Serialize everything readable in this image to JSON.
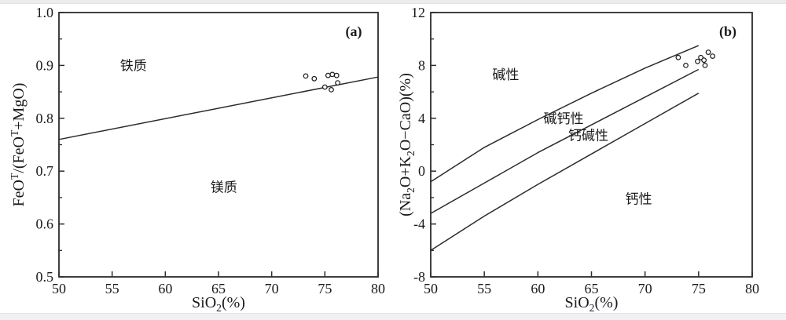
{
  "colors": {
    "axis": "#2b2b2b",
    "line": "#2b2b2b",
    "text": "#1a1a1a",
    "field_label": "#757575",
    "marker_stroke": "#1a1a1a",
    "marker_fill": "#ffffff",
    "background": "#ffffff",
    "strip": "#ececec"
  },
  "chart_data": [
    {
      "id": "a",
      "type": "scatter",
      "panel_label": "(a)",
      "xlabel_parts": [
        {
          "t": "SiO"
        },
        {
          "t": "2",
          "sub": true
        },
        {
          "t": "(%)"
        }
      ],
      "ylabel_parts": [
        {
          "t": "FeO"
        },
        {
          "t": "T",
          "sup": true
        },
        {
          "t": "/(FeO"
        },
        {
          "t": "T",
          "sup": true
        },
        {
          "t": "+MgO)"
        }
      ],
      "xlim": [
        50,
        80
      ],
      "ylim": [
        0.5,
        1.0
      ],
      "xticks": [
        50,
        55,
        60,
        65,
        70,
        75,
        80
      ],
      "xtick_labels": [
        "50",
        "55",
        "60",
        "65",
        "70",
        "75",
        "80"
      ],
      "yticks": [
        0.5,
        0.6,
        0.7,
        0.8,
        0.9,
        1.0
      ],
      "ytick_labels": [
        "0.5",
        "0.6",
        "0.7",
        "0.8",
        "0.9",
        "1.0"
      ],
      "y_minor_ticks": [
        0.55,
        0.65,
        0.75,
        0.85,
        0.95
      ],
      "x_minor_ticks": [],
      "grid": false,
      "legend": null,
      "boundary_lines": [
        {
          "name": "ferroan-magnesian boundary",
          "x": [
            50,
            80
          ],
          "y": [
            0.76,
            0.878
          ]
        }
      ],
      "field_labels": [
        {
          "text": "铁质",
          "x": 57.0,
          "y": 0.9
        },
        {
          "text": "镁质",
          "x": 65.5,
          "y": 0.67
        }
      ],
      "points": {
        "marker": "open-circle",
        "x": [
          73.2,
          74.0,
          75.3,
          75.7,
          76.1,
          76.2,
          75.0,
          75.6
        ],
        "y": [
          0.88,
          0.875,
          0.881,
          0.883,
          0.881,
          0.867,
          0.859,
          0.854
        ]
      }
    },
    {
      "id": "b",
      "type": "scatter",
      "panel_label": "(b)",
      "xlabel_parts": [
        {
          "t": "SiO"
        },
        {
          "t": "2",
          "sub": true
        },
        {
          "t": "(%)"
        }
      ],
      "ylabel_parts": [
        {
          "t": "(Na"
        },
        {
          "t": "2",
          "sub": true
        },
        {
          "t": "O+K"
        },
        {
          "t": "2",
          "sub": true
        },
        {
          "t": "O−CaO)(%)"
        }
      ],
      "xlim": [
        50,
        80
      ],
      "ylim": [
        -8,
        12
      ],
      "xticks": [
        50,
        55,
        60,
        65,
        70,
        75,
        80
      ],
      "xtick_labels": [
        "50",
        "55",
        "60",
        "65",
        "70",
        "75",
        "80"
      ],
      "yticks": [
        -8,
        -4,
        0,
        4,
        8,
        12
      ],
      "ytick_labels": [
        "-8",
        "-4",
        "0",
        "4",
        "8",
        "12"
      ],
      "y_minor_ticks": [
        -6,
        -2,
        2,
        6,
        10
      ],
      "x_minor_ticks": [],
      "grid": false,
      "legend": null,
      "boundary_lines": [
        {
          "name": "alkaline / alkali-calcic boundary",
          "x": [
            50,
            55,
            60,
            65,
            70,
            75
          ],
          "y": [
            -0.8,
            1.8,
            3.9,
            5.9,
            7.8,
            9.5
          ]
        },
        {
          "name": "alkali-calcic / calc-alkaline boundary",
          "x": [
            50,
            55,
            60,
            65,
            70,
            75
          ],
          "y": [
            -3.2,
            -0.9,
            1.4,
            3.5,
            5.6,
            7.7
          ]
        },
        {
          "name": "calc-alkaline / calcic boundary",
          "x": [
            50,
            55,
            60,
            65,
            70,
            75
          ],
          "y": [
            -6.0,
            -3.4,
            -1.0,
            1.3,
            3.6,
            5.9
          ]
        }
      ],
      "field_labels": [
        {
          "text": "碱性",
          "x": 57.0,
          "y": 7.3
        },
        {
          "text": "碱钙性",
          "x": 62.4,
          "y": 4.0
        },
        {
          "text": "钙碱性",
          "x": 64.7,
          "y": 2.7
        },
        {
          "text": "钙性",
          "x": 69.4,
          "y": -2.1
        }
      ],
      "points": {
        "marker": "open-circle",
        "x": [
          73.1,
          73.8,
          74.9,
          75.2,
          75.5,
          75.6,
          75.9,
          76.3
        ],
        "y": [
          8.6,
          8.0,
          8.3,
          8.6,
          8.4,
          8.0,
          9.0,
          8.7
        ]
      }
    }
  ]
}
